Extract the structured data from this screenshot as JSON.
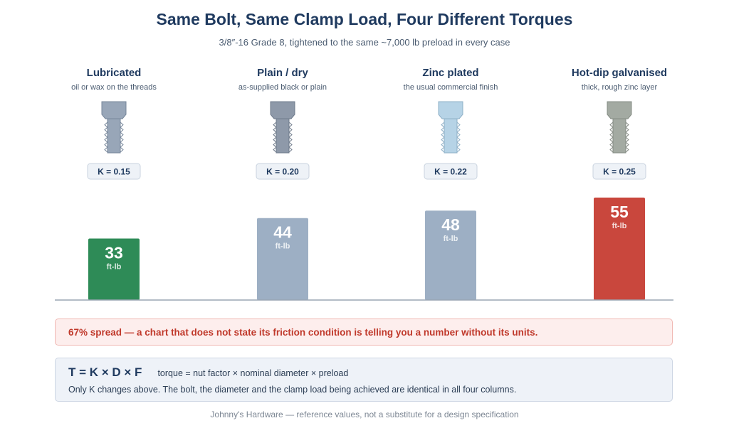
{
  "header": {
    "title": "Same Bolt, Same Clamp Load, Four Different Torques",
    "subtitle": "3/8″-16 Grade 8, tightened to the same ~7,000 lb preload in every case"
  },
  "chart_data": {
    "type": "bar",
    "title": "Same Bolt, Same Clamp Load, Four Different Torques",
    "subtitle": "3/8″-16 Grade 8, tightened to the same ~7,000 lb preload in every case",
    "categories": [
      "Lubricated",
      "Plain / dry",
      "Zinc plated",
      "Hot-dip galvanised"
    ],
    "descriptions": [
      "oil or wax on the threads",
      "as-supplied black or plain",
      "the usual commercial finish",
      "thick, rough zinc layer"
    ],
    "k_labels": [
      "K = 0.15",
      "K = 0.20",
      "K = 0.22",
      "K = 0.25"
    ],
    "k_values": [
      0.15,
      0.2,
      0.22,
      0.25
    ],
    "values": [
      33,
      44,
      48,
      55
    ],
    "unit": "ft-lb",
    "ylim": [
      0,
      60
    ],
    "xlabel": "",
    "ylabel": "",
    "grid": false,
    "bar_colors": [
      "#2e8b57",
      "#9dafc4",
      "#9dafc4",
      "#c9473d"
    ],
    "bolt_colors": [
      {
        "fill": "#98a6b8",
        "stroke": "#76869a"
      },
      {
        "fill": "#8e99a9",
        "stroke": "#6f7b8c"
      },
      {
        "fill": "#b6d3e6",
        "stroke": "#8fb0c7"
      },
      {
        "fill": "#a3aaa2",
        "stroke": "#858c84"
      }
    ]
  },
  "callout": {
    "text": "67% spread — a chart that does not state its friction condition is telling you a number without its units."
  },
  "formula": {
    "equation": "T = K × D × F",
    "description": "torque = nut factor × nominal diameter × preload",
    "note": "Only K changes above. The bolt, the diameter and the clamp load being achieved are identical in all four columns."
  },
  "footer": {
    "text": "Johnny's Hardware — reference values, not a substitute for a design specification"
  }
}
